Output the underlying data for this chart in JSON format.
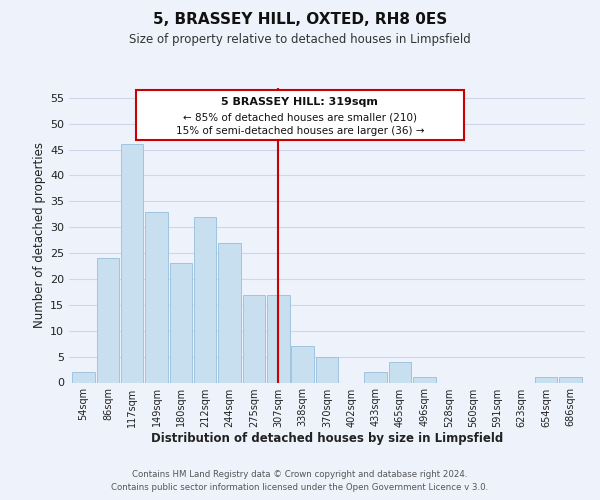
{
  "title": "5, BRASSEY HILL, OXTED, RH8 0ES",
  "subtitle": "Size of property relative to detached houses in Limpsfield",
  "xlabel": "Distribution of detached houses by size in Limpsfield",
  "ylabel": "Number of detached properties",
  "bar_labels": [
    "54sqm",
    "86sqm",
    "117sqm",
    "149sqm",
    "180sqm",
    "212sqm",
    "244sqm",
    "275sqm",
    "307sqm",
    "338sqm",
    "370sqm",
    "402sqm",
    "433sqm",
    "465sqm",
    "496sqm",
    "528sqm",
    "560sqm",
    "591sqm",
    "623sqm",
    "654sqm",
    "686sqm"
  ],
  "bar_values": [
    2,
    24,
    46,
    33,
    23,
    32,
    27,
    17,
    17,
    7,
    5,
    0,
    2,
    4,
    1,
    0,
    0,
    0,
    0,
    1,
    1
  ],
  "bar_color": "#c8dff0",
  "bar_edge_color": "#a0c4de",
  "reference_line_x": 8.0,
  "reference_line_color": "#cc0000",
  "ylim": [
    0,
    57
  ],
  "yticks": [
    0,
    5,
    10,
    15,
    20,
    25,
    30,
    35,
    40,
    45,
    50,
    55
  ],
  "annotation_title": "5 BRASSEY HILL: 319sqm",
  "annotation_line1": "← 85% of detached houses are smaller (210)",
  "annotation_line2": "15% of semi-detached houses are larger (36) →",
  "footer_line1": "Contains HM Land Registry data © Crown copyright and database right 2024.",
  "footer_line2": "Contains public sector information licensed under the Open Government Licence v 3.0.",
  "background_color": "#eef2fb",
  "box_bg_color": "#ffffff",
  "box_edge_color": "#cc0000",
  "grid_color": "#cdd6ea"
}
